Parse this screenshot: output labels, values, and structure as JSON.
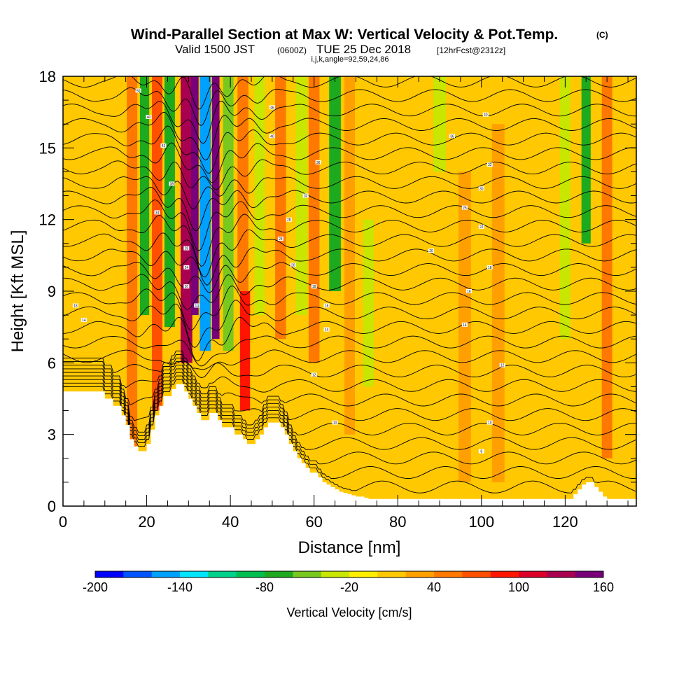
{
  "header": {
    "title_main": "Wind-Parallel Section at Max W: Vertical Velocity & Pot.Temp.",
    "title_mark": "(C)",
    "valid_prefix": "Valid 1500 JST",
    "valid_utc": "(0600Z)",
    "valid_date": "TUE 25 Dec 2018",
    "forecast": "[12hrFcst@2312z]",
    "indices": "i,j,k,angle=92,59,24,86"
  },
  "chart_data": {
    "type": "heatmap",
    "xlabel": "Distance [nm]",
    "ylabel": "Height [Kft MSL]",
    "xlim": [
      0,
      137
    ],
    "ylim": [
      0,
      18
    ],
    "x_ticks": [
      0,
      20,
      40,
      60,
      80,
      100,
      120
    ],
    "y_ticks": [
      0,
      3,
      6,
      9,
      12,
      15,
      18
    ],
    "colorbar": {
      "title": "Vertical Velocity [cm/s]",
      "bins": [
        -200,
        -180,
        -160,
        -140,
        -120,
        -100,
        -80,
        -60,
        -40,
        -20,
        0,
        20,
        40,
        60,
        80,
        100,
        120,
        140,
        160
      ],
      "tick_values": [
        -200,
        -140,
        -80,
        -20,
        40,
        100,
        160
      ],
      "colors": [
        "#0000ff",
        "#0055ff",
        "#00a0ff",
        "#00e6ff",
        "#00d28c",
        "#00be50",
        "#1eaa1e",
        "#78c81e",
        "#c8e600",
        "#ffee00",
        "#ffc800",
        "#ffa000",
        "#ff7800",
        "#ff5000",
        "#ff1400",
        "#dc0028",
        "#aa0050",
        "#780078"
      ]
    },
    "background_w": 10,
    "velocity_columns": [
      {
        "x": 16.5,
        "width": 2.5,
        "w": 40,
        "z_bottom": 2.5,
        "z_top": 18
      },
      {
        "x": 19.5,
        "width": 2.2,
        "w": -70,
        "z_bottom": 8,
        "z_top": 18
      },
      {
        "x": 22.5,
        "width": 2.5,
        "w": 60,
        "z_bottom": 4,
        "z_top": 18
      },
      {
        "x": 25.5,
        "width": 2.5,
        "w": -80,
        "z_bottom": 7.5,
        "z_top": 18
      },
      {
        "x": 29.5,
        "width": 2.8,
        "w": 120,
        "z_bottom": 6,
        "z_top": 18
      },
      {
        "x": 31.5,
        "width": 1.8,
        "w": 150,
        "z_bottom": 8,
        "z_top": 18
      },
      {
        "x": 34,
        "width": 2.6,
        "w": -160,
        "z_bottom": 6.5,
        "z_top": 18
      },
      {
        "x": 36.5,
        "width": 1.8,
        "w": 150,
        "z_bottom": 7,
        "z_top": 18
      },
      {
        "x": 39.5,
        "width": 2.5,
        "w": -60,
        "z_bottom": 6.5,
        "z_top": 18
      },
      {
        "x": 43.5,
        "width": 2.4,
        "w": 90,
        "z_bottom": 4,
        "z_top": 9
      },
      {
        "x": 43,
        "width": 2.6,
        "w": 40,
        "z_bottom": 9,
        "z_top": 18
      },
      {
        "x": 47,
        "width": 2.5,
        "w": -40,
        "z_bottom": 8,
        "z_top": 18
      },
      {
        "x": 52,
        "width": 2.6,
        "w": 50,
        "z_bottom": 7,
        "z_top": 18
      },
      {
        "x": 57,
        "width": 2.8,
        "w": -30,
        "z_bottom": 8,
        "z_top": 18
      },
      {
        "x": 60,
        "width": 2.6,
        "w": 50,
        "z_bottom": 6,
        "z_top": 18
      },
      {
        "x": 65,
        "width": 2.8,
        "w": -70,
        "z_bottom": 9,
        "z_top": 18
      },
      {
        "x": 68.5,
        "width": 2.5,
        "w": 30,
        "z_bottom": 3,
        "z_top": 18
      },
      {
        "x": 73,
        "width": 2.5,
        "w": -30,
        "z_bottom": 5,
        "z_top": 12
      },
      {
        "x": 90,
        "width": 3,
        "w": -30,
        "z_bottom": 14,
        "z_top": 18
      },
      {
        "x": 96,
        "width": 3,
        "w": 25,
        "z_bottom": 1,
        "z_top": 14
      },
      {
        "x": 104,
        "width": 3,
        "w": 25,
        "z_bottom": 1,
        "z_top": 16
      },
      {
        "x": 120,
        "width": 2.5,
        "w": -30,
        "z_bottom": 7,
        "z_top": 18
      },
      {
        "x": 125,
        "width": 2.2,
        "w": -80,
        "z_bottom": 11,
        "z_top": 18
      },
      {
        "x": 130,
        "width": 2.5,
        "w": 40,
        "z_bottom": 2,
        "z_top": 18
      }
    ],
    "terrain": {
      "x": [
        0,
        8,
        10,
        11,
        12,
        13,
        14,
        15,
        16,
        17,
        18,
        19,
        20,
        21,
        22,
        23,
        24,
        25,
        26,
        27,
        28,
        29,
        30,
        31,
        32,
        33,
        34,
        35,
        36,
        37,
        38,
        39,
        40,
        41,
        42,
        43,
        44,
        45,
        46,
        47,
        48,
        49,
        50,
        51,
        52,
        53,
        54,
        55,
        56,
        57,
        58,
        59,
        60,
        61,
        62,
        63,
        64,
        65,
        66,
        67,
        68,
        69,
        70,
        72,
        73,
        75,
        80,
        100,
        121,
        122,
        123,
        124,
        125,
        126,
        127,
        128,
        129,
        130,
        131,
        132,
        137
      ],
      "z": [
        4.8,
        4.8,
        4.5,
        4.5,
        4.2,
        4.2,
        3.8,
        3.4,
        2.8,
        2.5,
        2.3,
        2.3,
        2.6,
        3.2,
        3.8,
        4.2,
        4.6,
        4.6,
        4.9,
        5.1,
        5.1,
        4.8,
        4.5,
        4.2,
        3.9,
        3.6,
        3.6,
        3.9,
        3.9,
        3.6,
        3.3,
        3.3,
        3.3,
        3.0,
        3.0,
        2.8,
        2.6,
        2.6,
        2.8,
        3.0,
        3.3,
        3.5,
        3.5,
        3.5,
        3.3,
        3.0,
        2.6,
        2.3,
        2.0,
        1.8,
        1.6,
        1.4,
        1.4,
        1.2,
        1.0,
        0.9,
        0.8,
        0.7,
        0.6,
        0.55,
        0.5,
        0.45,
        0.4,
        0.35,
        0.3,
        0.3,
        0.3,
        0.3,
        0.3,
        0.5,
        0.7,
        0.9,
        1.0,
        1.0,
        0.8,
        0.6,
        0.4,
        0.3,
        0.3,
        0.3,
        0.3
      ]
    },
    "theta_contours": {
      "levels": [
        -6,
        -4,
        -2,
        0,
        2,
        4,
        6,
        8,
        10,
        12,
        14,
        16,
        18,
        20,
        22,
        24,
        26,
        28,
        30,
        32,
        34,
        36,
        38,
        40,
        42,
        44,
        46,
        48,
        50
      ],
      "labels": [
        {
          "x": 5,
          "z": 7.8,
          "text": "14"
        },
        {
          "x": 3,
          "z": 8.4,
          "text": "18"
        },
        {
          "x": 18,
          "z": 17.4,
          "text": "50"
        },
        {
          "x": 20.5,
          "z": 16.3,
          "text": "40"
        },
        {
          "x": 24,
          "z": 15.1,
          "text": "42"
        },
        {
          "x": 26,
          "z": 13.5,
          "text": "38"
        },
        {
          "x": 22.5,
          "z": 12.3,
          "text": "34"
        },
        {
          "x": 29.5,
          "z": 10.8,
          "text": "28"
        },
        {
          "x": 29.5,
          "z": 10,
          "text": "24"
        },
        {
          "x": 29.5,
          "z": 9.2,
          "text": "20"
        },
        {
          "x": 32,
          "z": 8.4,
          "text": "14"
        },
        {
          "x": 50,
          "z": 16.7,
          "text": "46"
        },
        {
          "x": 50,
          "z": 15.5,
          "text": "40"
        },
        {
          "x": 61,
          "z": 14.4,
          "text": "36"
        },
        {
          "x": 58,
          "z": 13,
          "text": "32"
        },
        {
          "x": 54,
          "z": 12,
          "text": "28"
        },
        {
          "x": 52,
          "z": 11.2,
          "text": "24"
        },
        {
          "x": 55,
          "z": 10.1,
          "text": "20"
        },
        {
          "x": 60,
          "z": 9.2,
          "text": "18"
        },
        {
          "x": 63,
          "z": 8.4,
          "text": "16"
        },
        {
          "x": 63,
          "z": 7.4,
          "text": "14"
        },
        {
          "x": 60,
          "z": 5.5,
          "text": "12"
        },
        {
          "x": 65,
          "z": 3.5,
          "text": "10"
        },
        {
          "x": 101,
          "z": 16.4,
          "text": "40"
        },
        {
          "x": 93,
          "z": 15.5,
          "text": "36"
        },
        {
          "x": 102,
          "z": 14.3,
          "text": "32"
        },
        {
          "x": 100,
          "z": 13.3,
          "text": "30"
        },
        {
          "x": 96,
          "z": 12.5,
          "text": "26"
        },
        {
          "x": 100,
          "z": 11.7,
          "text": "22"
        },
        {
          "x": 88,
          "z": 10.7,
          "text": "20"
        },
        {
          "x": 102,
          "z": 10,
          "text": "18"
        },
        {
          "x": 97,
          "z": 9,
          "text": "16"
        },
        {
          "x": 96,
          "z": 7.6,
          "text": "14"
        },
        {
          "x": 105,
          "z": 5.9,
          "text": "12"
        },
        {
          "x": 102,
          "z": 3.5,
          "text": "10"
        },
        {
          "x": 100,
          "z": 2.3,
          "text": "8"
        }
      ]
    }
  }
}
